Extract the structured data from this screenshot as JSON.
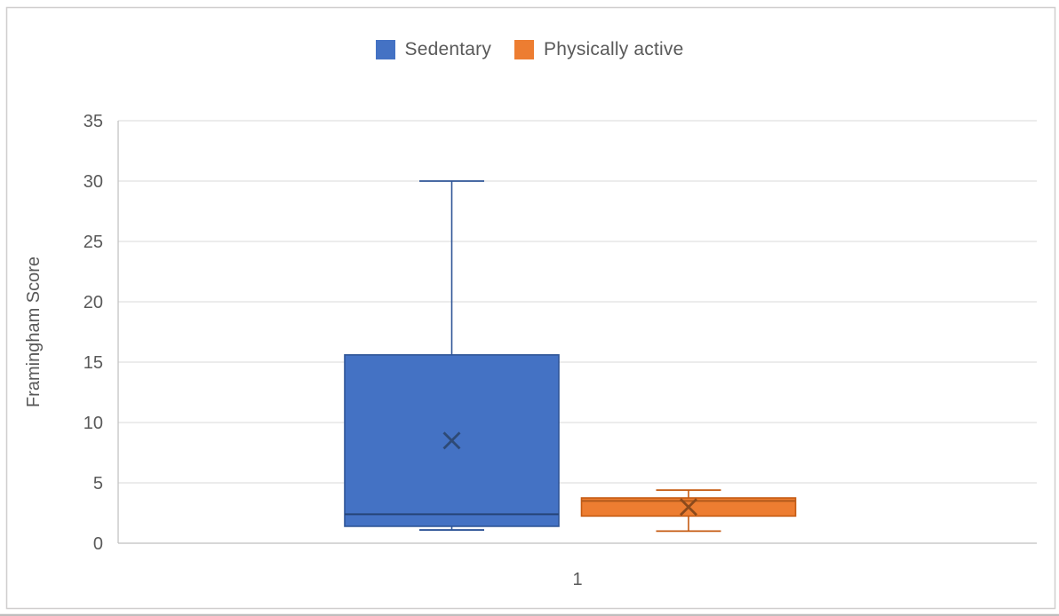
{
  "page": {
    "background": "#FFFFFF",
    "frame_border_color": "#D0CECE",
    "bottom_edge_color": "#BEBEBE"
  },
  "chart_data": {
    "type": "boxplot",
    "title": "",
    "xlabel": "",
    "ylabel": "Framingham Score",
    "categories": [
      "1"
    ],
    "ylim": [
      0,
      35
    ],
    "yticks": [
      0,
      5,
      10,
      15,
      20,
      25,
      30,
      35
    ],
    "grid": true,
    "legend_position": "top",
    "text_color": "#595959",
    "gridline_color": "#D9D9D9",
    "axis_line_color": "#BFBFBF",
    "series": [
      {
        "name": "Sedentary",
        "fill": "#4472C4",
        "stroke": "#2F5597",
        "median_color": "#264478",
        "mean_color": "#2E4A76",
        "stats": {
          "min": 1.1,
          "q1": 1.4,
          "median": 2.4,
          "q3": 15.6,
          "max": 30,
          "mean": 8.5
        }
      },
      {
        "name": "Physically active",
        "fill": "#ED7D31",
        "stroke": "#C55A11",
        "median_color": "#B25A1B",
        "mean_color": "#8B4A1C",
        "stats": {
          "min": 1.0,
          "q1": 2.25,
          "median": 3.5,
          "q3": 3.75,
          "max": 4.4,
          "mean": 3.0
        }
      }
    ]
  }
}
